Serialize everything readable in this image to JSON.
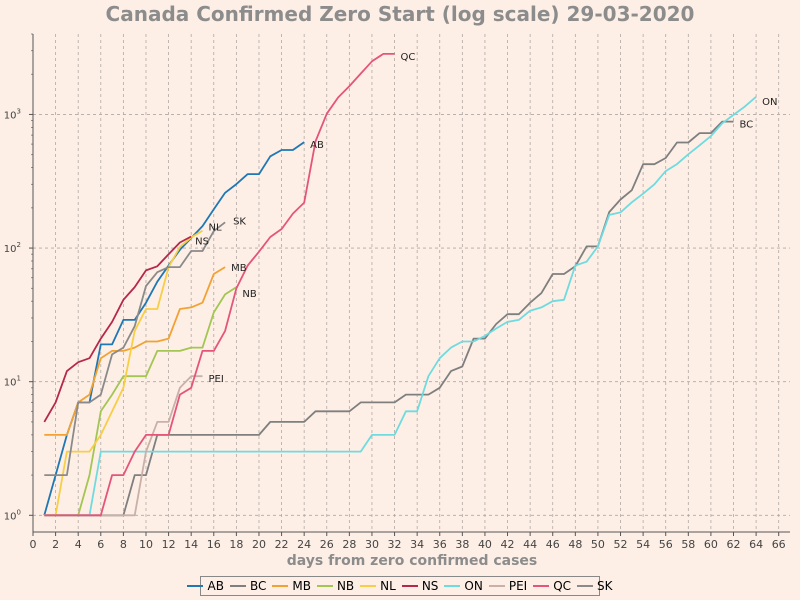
{
  "chart_data": {
    "type": "line",
    "title": "Canada Confirmed Zero Start (log scale) 29-03-2020",
    "xlabel": "days from zero confirmed cases",
    "ylabel": "",
    "y_scale": "log",
    "xlim": [
      0,
      67
    ],
    "ylim": [
      0.75,
      4000
    ],
    "x_ticks": [
      0,
      2,
      4,
      6,
      8,
      10,
      12,
      14,
      16,
      18,
      20,
      22,
      24,
      26,
      28,
      30,
      32,
      34,
      36,
      38,
      40,
      42,
      44,
      46,
      48,
      50,
      52,
      54,
      56,
      58,
      60,
      62,
      64,
      66
    ],
    "y_ticks": [
      {
        "value": 1,
        "base": "10",
        "exp": "0"
      },
      {
        "value": 10,
        "base": "10",
        "exp": "1"
      },
      {
        "value": 100,
        "base": "10",
        "exp": "2"
      },
      {
        "value": 1000,
        "base": "10",
        "exp": "3"
      }
    ],
    "grid": true,
    "legend_position": "bottom",
    "series": [
      {
        "name": "AB",
        "color": "#1f77b4",
        "x": [
          1,
          2,
          3,
          4,
          5,
          6,
          7,
          8,
          9,
          10,
          11,
          12,
          13,
          14,
          15,
          16,
          17,
          18,
          19,
          20,
          21,
          22,
          23,
          24
        ],
        "y": [
          1,
          2,
          4,
          7,
          7,
          19,
          19,
          29,
          29,
          39,
          56,
          74,
          97,
          119,
          146,
          195,
          259,
          301,
          358,
          358,
          486,
          542,
          542,
          621
        ]
      },
      {
        "name": "BC",
        "color": "#7f7f7f",
        "x": [
          1,
          2,
          3,
          4,
          5,
          6,
          7,
          8,
          9,
          10,
          11,
          12,
          13,
          14,
          15,
          16,
          17,
          18,
          19,
          20,
          21,
          22,
          23,
          24,
          25,
          26,
          27,
          28,
          29,
          30,
          31,
          32,
          33,
          34,
          35,
          36,
          37,
          38,
          39,
          40,
          41,
          42,
          43,
          44,
          45,
          46,
          47,
          48,
          49,
          50,
          51,
          52,
          53,
          54,
          55,
          56,
          57,
          58,
          59,
          60,
          61,
          62
        ],
        "y": [
          1,
          1,
          1,
          1,
          1,
          1,
          1,
          1,
          2,
          2,
          4,
          4,
          4,
          4,
          4,
          4,
          4,
          4,
          4,
          4,
          5,
          5,
          5,
          5,
          6,
          6,
          6,
          6,
          7,
          7,
          7,
          7,
          8,
          8,
          8,
          9,
          12,
          13,
          21,
          21,
          27,
          32,
          32,
          39,
          46,
          64,
          64,
          73,
          103,
          103,
          186,
          231,
          271,
          424,
          424,
          472,
          617,
          617,
          725,
          725,
          884,
          884
        ]
      },
      {
        "name": "MB",
        "color": "#f2a233",
        "x": [
          1,
          2,
          3,
          4,
          5,
          6,
          7,
          8,
          9,
          10,
          11,
          12,
          13,
          14,
          15,
          16,
          17
        ],
        "y": [
          4,
          4,
          4,
          7,
          8,
          15,
          17,
          17,
          18,
          20,
          20,
          21,
          35,
          36,
          39,
          64,
          72
        ]
      },
      {
        "name": "NB",
        "color": "#a3c552",
        "x": [
          1,
          2,
          3,
          4,
          5,
          6,
          7,
          8,
          9,
          10,
          11,
          12,
          13,
          14,
          15,
          16,
          17,
          18
        ],
        "y": [
          1,
          1,
          1,
          1,
          2,
          6,
          8,
          11,
          11,
          11,
          17,
          17,
          17,
          18,
          18,
          33,
          45,
          51
        ]
      },
      {
        "name": "NL",
        "color": "#f7ce46",
        "x": [
          1,
          2,
          3,
          4,
          5,
          6,
          7,
          8,
          9,
          10,
          11,
          12,
          13,
          14,
          15
        ],
        "y": [
          1,
          1,
          3,
          3,
          3,
          4,
          6,
          9,
          24,
          35,
          35,
          72,
          102,
          120,
          135
        ]
      },
      {
        "name": "NS",
        "color": "#b5284a",
        "x": [
          1,
          2,
          3,
          4,
          5,
          6,
          7,
          8,
          9,
          10,
          11,
          12,
          13,
          14
        ],
        "y": [
          5,
          7,
          12,
          14,
          15,
          21,
          28,
          41,
          51,
          68,
          73,
          90,
          110,
          122
        ]
      },
      {
        "name": "ON",
        "color": "#6edbe0",
        "x": [
          1,
          2,
          3,
          4,
          5,
          6,
          7,
          8,
          9,
          10,
          11,
          12,
          13,
          14,
          15,
          16,
          17,
          18,
          19,
          20,
          21,
          22,
          23,
          24,
          25,
          26,
          27,
          28,
          29,
          30,
          31,
          32,
          33,
          34,
          35,
          36,
          37,
          38,
          39,
          40,
          41,
          42,
          43,
          44,
          45,
          46,
          47,
          48,
          49,
          50,
          51,
          52,
          53,
          54,
          55,
          56,
          57,
          58,
          59,
          60,
          61,
          62,
          63,
          64
        ],
        "y": [
          1,
          1,
          1,
          1,
          1,
          3,
          3,
          3,
          3,
          3,
          3,
          3,
          3,
          3,
          3,
          3,
          3,
          3,
          3,
          3,
          3,
          3,
          3,
          3,
          3,
          3,
          3,
          3,
          3,
          4,
          4,
          4,
          6,
          6,
          11,
          15,
          18,
          20,
          20,
          22,
          25,
          28,
          29,
          34,
          36,
          40,
          41,
          74,
          79,
          103,
          177,
          185,
          220,
          255,
          300,
          377,
          425,
          503,
          588,
          688,
          858,
          993,
          1144,
          1355
        ]
      },
      {
        "name": "PEI",
        "color": "#c9b0a8",
        "x": [
          1,
          2,
          3,
          4,
          5,
          6,
          7,
          8,
          9,
          10,
          11,
          12,
          13,
          14,
          15
        ],
        "y": [
          1,
          1,
          1,
          1,
          1,
          1,
          1,
          1,
          1,
          3,
          5,
          5,
          9,
          11,
          11
        ]
      },
      {
        "name": "QC",
        "color": "#e5557a",
        "x": [
          1,
          2,
          3,
          4,
          5,
          6,
          7,
          8,
          9,
          10,
          11,
          12,
          13,
          14,
          15,
          16,
          17,
          18,
          19,
          20,
          21,
          22,
          23,
          24,
          25,
          26,
          27,
          28,
          29,
          30,
          31,
          32
        ],
        "y": [
          1,
          1,
          1,
          1,
          1,
          1,
          2,
          2,
          3,
          4,
          4,
          4,
          8,
          9,
          17,
          17,
          24,
          50,
          74,
          94,
          121,
          139,
          181,
          219,
          628,
          1013,
          1339,
          1629,
          2021,
          2498,
          2840,
          2840
        ]
      },
      {
        "name": "SK",
        "color": "#8a8a8a",
        "x": [
          1,
          2,
          3,
          4,
          5,
          6,
          7,
          8,
          9,
          10,
          11,
          12,
          13,
          14,
          15,
          16,
          17
        ],
        "y": [
          2,
          2,
          2,
          7,
          7,
          8,
          16,
          18,
          26,
          52,
          66,
          72,
          72,
          95,
          95,
          134,
          156
        ]
      }
    ]
  }
}
